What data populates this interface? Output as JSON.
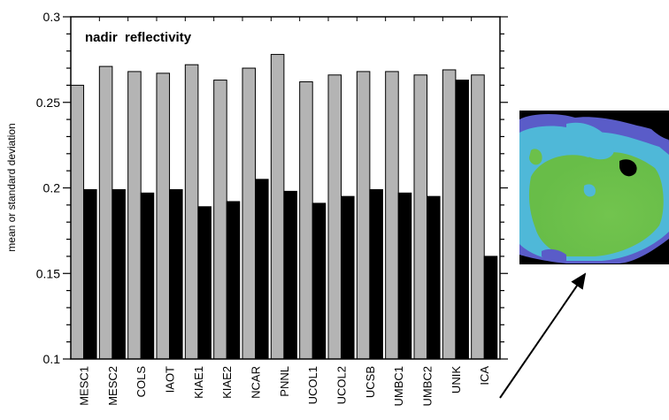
{
  "chart_data": {
    "type": "bar",
    "title": "nadir  reflectivity",
    "ylabel": "mean or standard deviation",
    "xlabel": "",
    "ylim": [
      0.1,
      0.3
    ],
    "yticks": [
      "0.1",
      "0.15",
      "0.2",
      "0.25",
      "0.3"
    ],
    "grid": false,
    "legend": "none",
    "categories": [
      "MESC1",
      "MESC2",
      "COLS",
      "IAOT",
      "KIAE1",
      "KIAE2",
      "NCAR",
      "PNNL",
      "UCOL1",
      "UCOL2",
      "UCSB",
      "UMBC1",
      "UMBC2",
      "UNIK",
      "ICA"
    ],
    "series": [
      {
        "color": "#b4b4b4",
        "values": [
          0.26,
          0.271,
          0.268,
          0.267,
          0.272,
          0.263,
          0.27,
          0.278,
          0.262,
          0.266,
          0.268,
          0.268,
          0.266,
          0.269,
          0.266
        ]
      },
      {
        "color": "#000000",
        "values": [
          0.199,
          0.199,
          0.197,
          0.199,
          0.189,
          0.192,
          0.205,
          0.198,
          0.191,
          0.195,
          0.199,
          0.197,
          0.195,
          0.263,
          0.16
        ]
      }
    ]
  },
  "inset_image": {
    "description_colors": [
      "#6cc04a",
      "#4fb8d8",
      "#5a5cc8",
      "#000000"
    ]
  }
}
